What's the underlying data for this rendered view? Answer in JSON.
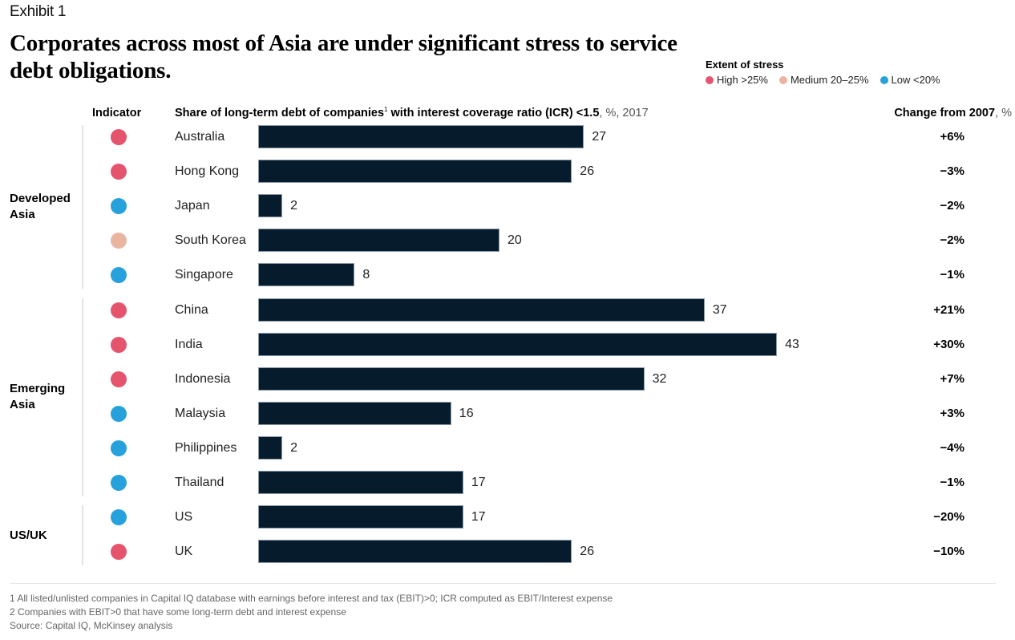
{
  "exhibit_label": "Exhibit 1",
  "title": "Corporates across most of Asia are under significant stress to service debt obligations.",
  "legend": {
    "title": "Extent of stress",
    "items": [
      {
        "label": "High >25%",
        "color": "#e5546d"
      },
      {
        "label": "Medium 20–25%",
        "color": "#e9b5a1"
      },
      {
        "label": "Low <20%",
        "color": "#27a1dc"
      }
    ]
  },
  "headers": {
    "indicator": "Indicator",
    "share_bold_1": "Share of long-term debt of companies",
    "share_sup": "1",
    "share_bold_2": " with interest coverage ratio (ICR) <1.5",
    "share_light": ", %, 2017",
    "change_bold": "Change from 2007",
    "change_light": ", %"
  },
  "chart_data": {
    "type": "bar",
    "orientation": "horizontal",
    "title": "Share of long-term debt of companies with interest coverage ratio (ICR) <1.5, %, 2017",
    "xlabel": "%",
    "xlim": [
      0,
      45
    ],
    "grid": false,
    "legend_position": "top-right",
    "groups": [
      {
        "label": "Developed Asia",
        "rows": [
          0,
          4
        ]
      },
      {
        "label": "Emerging Asia",
        "rows": [
          5,
          10
        ]
      },
      {
        "label": "US/UK",
        "rows": [
          11,
          12
        ]
      }
    ],
    "categories": [
      "Australia",
      "Hong Kong",
      "Japan",
      "South Korea",
      "Singapore",
      "China",
      "India",
      "Indonesia",
      "Malaysia",
      "Philippines",
      "Thailand",
      "US",
      "UK"
    ],
    "values": [
      27,
      26,
      2,
      20,
      8,
      37,
      43,
      32,
      16,
      2,
      17,
      17,
      26
    ],
    "indicator": [
      "high",
      "high",
      "low",
      "medium",
      "low",
      "high",
      "high",
      "high",
      "low",
      "low",
      "low",
      "low",
      "high"
    ],
    "change_from_2007": [
      "+6%",
      "−3%",
      "−2%",
      "−2%",
      "−1%",
      "+21%",
      "+30%",
      "+7%",
      "+3%",
      "−4%",
      "−1%",
      "−20%",
      "−10%"
    ]
  },
  "indicator_colors": {
    "high": "#e5546d",
    "medium": "#e9b5a1",
    "low": "#27a1dc"
  },
  "bar_color": "#061c2c",
  "footnotes": [
    "1 All listed/unlisted companies in Capital IQ database with earnings before interest and tax (EBIT)>0; ICR computed as EBIT/Interest expense",
    "2 Companies with EBIT>0 that have some long-term debt and interest expense",
    "Source: Capital IQ, McKinsey analysis"
  ]
}
